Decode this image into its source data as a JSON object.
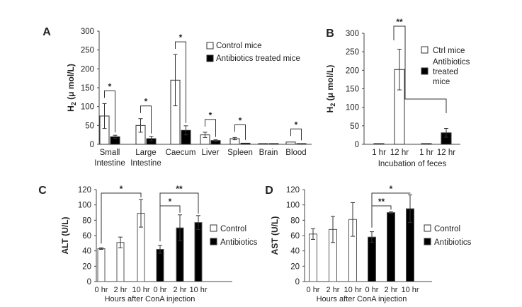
{
  "chart_data": [
    {
      "id": "A",
      "type": "bar",
      "panel_label": "A",
      "ylabel": "H2 (μ mol/L)",
      "xlabel": "",
      "ylim": [
        0,
        300
      ],
      "yticks": [
        0,
        50,
        100,
        150,
        200,
        250,
        300
      ],
      "categories": [
        "Small Intestine",
        "Large Intestine",
        "Caecum",
        "Liver",
        "Spleen",
        "Brain",
        "Blood"
      ],
      "series": [
        {
          "name": "Control mice",
          "color": "#ffffff",
          "values": [
            75,
            50,
            170,
            25,
            15,
            2,
            6
          ],
          "errors": [
            33,
            18,
            68,
            7,
            3,
            1,
            1
          ]
        },
        {
          "name": "Antibiotics treated mice",
          "color": "#000000",
          "values": [
            20,
            15,
            37,
            10,
            3,
            2,
            2
          ],
          "errors": [
            4,
            6,
            12,
            2,
            1,
            1,
            1
          ]
        }
      ],
      "significance": [
        "*",
        "*",
        "*",
        "*",
        "*",
        "",
        "*"
      ],
      "legend": "top-right"
    },
    {
      "id": "B",
      "type": "bar",
      "panel_label": "B",
      "ylabel": "H2 (μ mol/L)",
      "xlabel": "Incubation of feces",
      "ylim": [
        0,
        300
      ],
      "yticks": [
        0,
        50,
        100,
        150,
        200,
        250,
        300
      ],
      "categories": [
        "1 hr",
        "12 hr",
        "1 hr",
        "12 hr"
      ],
      "groups": [
        "Ctrl mice",
        "Ctrl mice",
        "Antibiotics treated mice",
        "Antibiotics treated mice"
      ],
      "values": [
        2,
        202,
        2,
        31
      ],
      "errors": [
        0,
        55,
        0,
        12
      ],
      "series": [
        {
          "name": "Ctrl mice",
          "color": "#ffffff"
        },
        {
          "name": "Antibiotics treated mice",
          "color": "#000000"
        }
      ],
      "legend_labels": [
        "Ctrl mice",
        "Antibiotics treated mice"
      ],
      "comparison": {
        "label": "**",
        "from": 1,
        "to": 3
      },
      "legend": "right"
    },
    {
      "id": "C",
      "type": "bar",
      "panel_label": "C",
      "ylabel": "ALT (U/L)",
      "xlabel": "Hours after ConA injection",
      "ylim": [
        0,
        120
      ],
      "yticks": [
        0,
        20,
        40,
        60,
        80,
        100,
        120
      ],
      "categories": [
        "0 hr",
        "2 hr",
        "10 hr",
        "0 hr",
        "2 hr",
        "10 hr"
      ],
      "values": [
        43,
        51,
        89,
        42,
        70,
        77
      ],
      "errors": [
        1,
        7,
        18,
        5,
        17,
        9
      ],
      "fills": [
        "#ffffff",
        "#ffffff",
        "#ffffff",
        "#000000",
        "#000000",
        "#000000"
      ],
      "comparisons": [
        {
          "label": "*",
          "from": 0,
          "to": 2,
          "level": 2
        },
        {
          "label": "**",
          "from": 3,
          "to": 5,
          "level": 2
        },
        {
          "label": "*",
          "from": 3,
          "to": 4,
          "level": 1
        }
      ],
      "legend_labels": [
        "Control",
        "Antibiotics"
      ],
      "legend": "right"
    },
    {
      "id": "D",
      "type": "bar",
      "panel_label": "D",
      "ylabel": "AST (U/L)",
      "xlabel": "Hours after ConA injection",
      "ylim": [
        0,
        120
      ],
      "yticks": [
        0,
        20,
        40,
        60,
        80,
        100,
        120
      ],
      "categories": [
        "0 hr",
        "2 hr",
        "10 hr",
        "0 hr",
        "2 hr",
        "10 hr"
      ],
      "values": [
        62,
        68,
        81,
        58,
        90,
        95
      ],
      "errors": [
        7,
        17,
        22,
        7,
        1,
        18
      ],
      "fills": [
        "#ffffff",
        "#ffffff",
        "#ffffff",
        "#000000",
        "#000000",
        "#000000"
      ],
      "comparisons": [
        {
          "label": "*",
          "from": 3,
          "to": 5,
          "level": 2
        },
        {
          "label": "**",
          "from": 3,
          "to": 4,
          "level": 1
        }
      ],
      "legend_labels": [
        "Control",
        "Antibiotics"
      ],
      "legend": "right"
    }
  ]
}
